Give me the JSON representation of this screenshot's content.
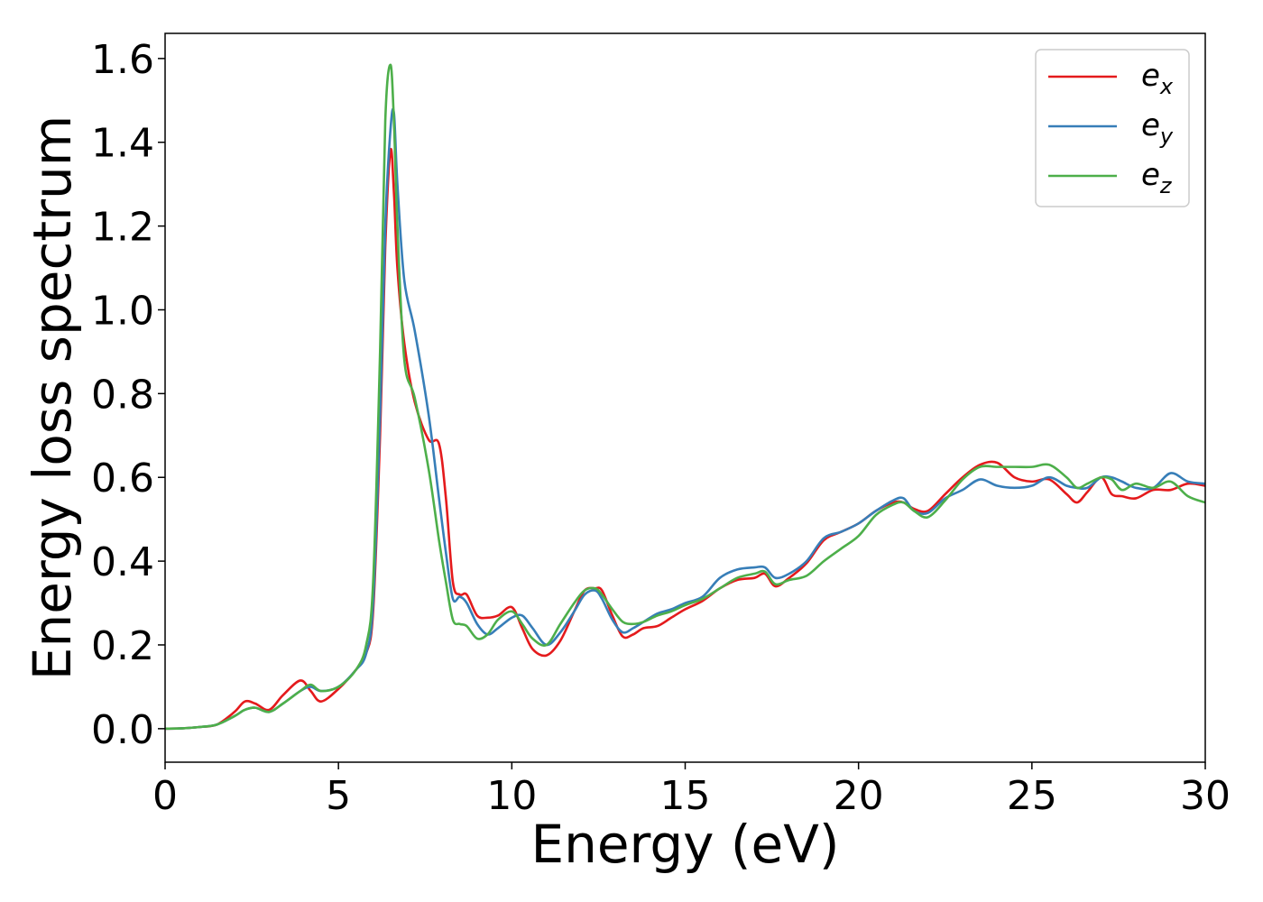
{
  "chart_data": {
    "type": "line",
    "xlabel": "Energy (eV)",
    "ylabel": "Energy loss spectrum",
    "xlim": [
      0,
      30
    ],
    "ylim": [
      -0.08,
      1.66
    ],
    "xticks": [
      0,
      5,
      10,
      15,
      20,
      25,
      30
    ],
    "xtick_labels": [
      "0",
      "5",
      "10",
      "15",
      "20",
      "25",
      "30"
    ],
    "yticks": [
      0.0,
      0.2,
      0.4,
      0.6,
      0.8,
      1.0,
      1.2,
      1.4,
      1.6
    ],
    "ytick_labels": [
      "0.0",
      "0.2",
      "0.4",
      "0.6",
      "0.8",
      "1.0",
      "1.2",
      "1.4",
      "1.6"
    ],
    "grid": false,
    "legend_position": "top-right",
    "series": [
      {
        "name": "e_x",
        "label_main": "e",
        "label_sub": "x",
        "color": "#e41a1c",
        "x": [
          0,
          0.5,
          1,
          1.5,
          2,
          2.3,
          2.6,
          3,
          3.4,
          3.9,
          4.2,
          4.5,
          5,
          5.5,
          5.8,
          6,
          6.2,
          6.35,
          6.5,
          6.6,
          6.7,
          6.9,
          7.2,
          7.6,
          7.9,
          8.1,
          8.3,
          8.5,
          8.7,
          9,
          9.3,
          9.6,
          10,
          10.3,
          10.6,
          11,
          11.4,
          11.8,
          12.1,
          12.4,
          12.6,
          12.9,
          13.2,
          13.5,
          13.8,
          14.2,
          14.6,
          15,
          15.5,
          16,
          16.5,
          17,
          17.3,
          17.6,
          18,
          18.5,
          19,
          19.5,
          20,
          20.5,
          21,
          21.3,
          21.6,
          22,
          22.5,
          23,
          23.5,
          24,
          24.5,
          25,
          25.5,
          26,
          26.3,
          26.6,
          27,
          27.3,
          27.6,
          28,
          28.5,
          29,
          29.5,
          30
        ],
        "y": [
          0,
          0.001,
          0.004,
          0.01,
          0.04,
          0.065,
          0.06,
          0.045,
          0.08,
          0.115,
          0.09,
          0.065,
          0.095,
          0.14,
          0.18,
          0.28,
          0.7,
          1.15,
          1.38,
          1.28,
          1.1,
          0.92,
          0.78,
          0.69,
          0.68,
          0.55,
          0.35,
          0.32,
          0.32,
          0.27,
          0.265,
          0.27,
          0.29,
          0.24,
          0.19,
          0.175,
          0.21,
          0.28,
          0.33,
          0.335,
          0.33,
          0.27,
          0.22,
          0.225,
          0.24,
          0.245,
          0.265,
          0.285,
          0.305,
          0.335,
          0.355,
          0.36,
          0.37,
          0.34,
          0.36,
          0.395,
          0.45,
          0.47,
          0.49,
          0.52,
          0.54,
          0.54,
          0.525,
          0.52,
          0.56,
          0.6,
          0.63,
          0.635,
          0.6,
          0.59,
          0.595,
          0.56,
          0.54,
          0.565,
          0.6,
          0.56,
          0.555,
          0.55,
          0.57,
          0.57,
          0.585,
          0.58
        ]
      },
      {
        "name": "e_y",
        "label_main": "e",
        "label_sub": "y",
        "color": "#377eb8",
        "x": [
          0,
          0.5,
          1,
          1.5,
          2,
          2.3,
          2.6,
          3,
          3.4,
          3.9,
          4.2,
          4.5,
          5,
          5.5,
          5.8,
          6,
          6.2,
          6.35,
          6.5,
          6.6,
          6.7,
          6.9,
          7.2,
          7.6,
          7.9,
          8.1,
          8.3,
          8.5,
          8.7,
          9,
          9.3,
          9.6,
          10,
          10.3,
          10.6,
          11,
          11.4,
          11.8,
          12.1,
          12.4,
          12.6,
          12.9,
          13.2,
          13.5,
          13.8,
          14.2,
          14.6,
          15,
          15.5,
          16,
          16.5,
          17,
          17.3,
          17.6,
          18,
          18.5,
          19,
          19.5,
          20,
          20.5,
          21,
          21.3,
          21.6,
          22,
          22.5,
          23,
          23.5,
          24,
          24.5,
          25,
          25.5,
          26,
          26.3,
          26.6,
          27,
          27.3,
          27.6,
          28,
          28.5,
          29,
          29.5,
          30
        ],
        "y": [
          0,
          0.001,
          0.004,
          0.01,
          0.03,
          0.045,
          0.05,
          0.04,
          0.06,
          0.09,
          0.1,
          0.09,
          0.1,
          0.14,
          0.18,
          0.3,
          0.75,
          1.2,
          1.43,
          1.47,
          1.3,
          1.07,
          0.95,
          0.75,
          0.55,
          0.42,
          0.31,
          0.315,
          0.3,
          0.25,
          0.225,
          0.24,
          0.265,
          0.27,
          0.24,
          0.2,
          0.23,
          0.28,
          0.32,
          0.33,
          0.31,
          0.26,
          0.23,
          0.24,
          0.255,
          0.275,
          0.285,
          0.3,
          0.315,
          0.36,
          0.38,
          0.385,
          0.385,
          0.36,
          0.37,
          0.4,
          0.455,
          0.47,
          0.49,
          0.52,
          0.545,
          0.55,
          0.52,
          0.515,
          0.55,
          0.57,
          0.595,
          0.58,
          0.575,
          0.58,
          0.6,
          0.58,
          0.575,
          0.575,
          0.6,
          0.6,
          0.59,
          0.575,
          0.575,
          0.61,
          0.59,
          0.585
        ]
      },
      {
        "name": "e_z",
        "label_main": "e",
        "label_sub": "z",
        "color": "#4daf4a",
        "x": [
          0,
          0.5,
          1,
          1.5,
          2,
          2.3,
          2.6,
          3,
          3.4,
          3.9,
          4.2,
          4.5,
          5,
          5.5,
          5.8,
          6,
          6.2,
          6.35,
          6.5,
          6.6,
          6.7,
          6.9,
          7.2,
          7.6,
          7.9,
          8.1,
          8.3,
          8.5,
          8.7,
          9,
          9.3,
          9.6,
          10,
          10.3,
          10.6,
          11,
          11.4,
          11.8,
          12.1,
          12.4,
          12.6,
          12.9,
          13.2,
          13.5,
          13.8,
          14.2,
          14.6,
          15,
          15.5,
          16,
          16.5,
          17,
          17.3,
          17.6,
          18,
          18.5,
          19,
          19.5,
          20,
          20.5,
          21,
          21.3,
          21.6,
          22,
          22.5,
          23,
          23.5,
          24,
          24.5,
          25,
          25.5,
          26,
          26.3,
          26.6,
          27,
          27.3,
          27.6,
          28,
          28.5,
          29,
          29.5,
          30
        ],
        "y": [
          0,
          0.001,
          0.004,
          0.01,
          0.03,
          0.045,
          0.05,
          0.04,
          0.06,
          0.09,
          0.105,
          0.09,
          0.1,
          0.14,
          0.2,
          0.35,
          0.9,
          1.45,
          1.585,
          1.45,
          1.2,
          0.88,
          0.79,
          0.62,
          0.45,
          0.35,
          0.26,
          0.25,
          0.245,
          0.215,
          0.225,
          0.26,
          0.28,
          0.25,
          0.215,
          0.2,
          0.25,
          0.3,
          0.33,
          0.335,
          0.32,
          0.285,
          0.255,
          0.25,
          0.255,
          0.27,
          0.28,
          0.295,
          0.31,
          0.335,
          0.36,
          0.37,
          0.375,
          0.345,
          0.355,
          0.365,
          0.4,
          0.43,
          0.46,
          0.51,
          0.535,
          0.54,
          0.52,
          0.505,
          0.545,
          0.595,
          0.625,
          0.625,
          0.625,
          0.625,
          0.63,
          0.6,
          0.575,
          0.585,
          0.6,
          0.595,
          0.57,
          0.585,
          0.575,
          0.59,
          0.555,
          0.54
        ]
      }
    ]
  }
}
